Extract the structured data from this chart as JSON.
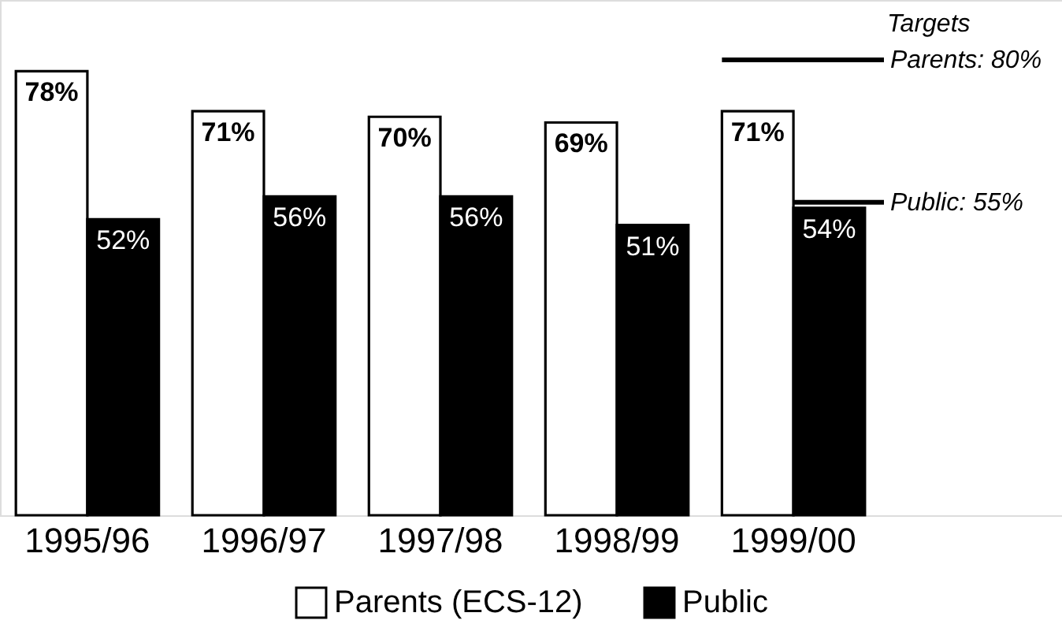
{
  "chart_data": {
    "type": "bar",
    "categories": [
      "1995/96",
      "1996/97",
      "1997/98",
      "1998/99",
      "1999/00"
    ],
    "series": [
      {
        "name": "Parents (ECS-12)",
        "color": "#ffffff",
        "values": [
          78,
          71,
          70,
          69,
          71
        ],
        "value_labels": [
          "78%",
          "71%",
          "70%",
          "69%",
          "71%"
        ]
      },
      {
        "name": "Public",
        "color": "#000000",
        "values": [
          52,
          56,
          56,
          51,
          54
        ],
        "value_labels": [
          "52%",
          "56%",
          "56%",
          "51%",
          "54%"
        ]
      }
    ],
    "ref_lines": [
      {
        "axis": "y",
        "value": 80,
        "label": "Parents: 80%",
        "color": "#000000"
      },
      {
        "axis": "y",
        "value": 55,
        "label": "Public: 55%",
        "color": "#000000"
      }
    ],
    "annotations": [
      "Targets"
    ],
    "legend": "bottom",
    "tick_labels": "x"
  }
}
